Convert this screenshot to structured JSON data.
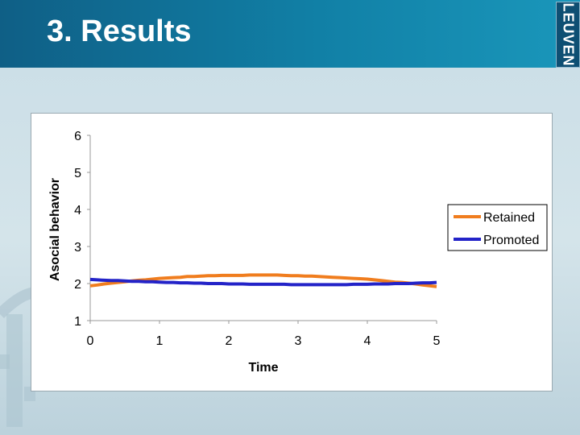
{
  "slide": {
    "title": "3. Results",
    "logo_text": "LEUVEN",
    "colors": {
      "header": "#1180a6",
      "background": "#d4e4ea"
    }
  },
  "chart_data": {
    "type": "line",
    "title": "",
    "xlabel": "Time",
    "ylabel": "Asocial behavior",
    "xlim": [
      0,
      5
    ],
    "ylim": [
      1,
      6
    ],
    "x_ticks": [
      0,
      1,
      2,
      3,
      4,
      5
    ],
    "y_ticks": [
      1,
      2,
      3,
      4,
      5,
      6
    ],
    "grid": false,
    "legend": "right",
    "series": [
      {
        "name": "Retained",
        "color": "#f07d1e",
        "x": [
          0,
          0.1,
          0.2,
          0.3,
          0.4,
          0.5,
          0.6,
          0.7,
          0.8,
          0.9,
          1.0,
          1.1,
          1.2,
          1.3,
          1.4,
          1.5,
          1.6,
          1.7,
          1.8,
          1.9,
          2.0,
          2.1,
          2.2,
          2.3,
          2.4,
          2.5,
          2.6,
          2.7,
          2.8,
          2.9,
          3.0,
          3.1,
          3.2,
          3.3,
          3.4,
          3.5,
          3.6,
          3.7,
          3.8,
          3.9,
          4.0,
          4.1,
          4.2,
          4.3,
          4.4,
          4.5,
          4.6,
          4.7,
          4.8,
          4.9,
          5.0
        ],
        "values": [
          1.94,
          1.96,
          1.99,
          2.01,
          2.03,
          2.05,
          2.07,
          2.09,
          2.1,
          2.12,
          2.14,
          2.15,
          2.16,
          2.17,
          2.19,
          2.19,
          2.2,
          2.21,
          2.21,
          2.22,
          2.22,
          2.22,
          2.22,
          2.23,
          2.23,
          2.23,
          2.23,
          2.23,
          2.22,
          2.21,
          2.21,
          2.2,
          2.2,
          2.19,
          2.18,
          2.17,
          2.16,
          2.15,
          2.14,
          2.13,
          2.12,
          2.1,
          2.08,
          2.06,
          2.04,
          2.03,
          2.01,
          1.99,
          1.96,
          1.94,
          1.92
        ]
      },
      {
        "name": "Promoted",
        "color": "#2323c8",
        "x": [
          0,
          0.1,
          0.2,
          0.3,
          0.4,
          0.5,
          0.6,
          0.7,
          0.8,
          0.9,
          1.0,
          1.1,
          1.2,
          1.3,
          1.4,
          1.5,
          1.6,
          1.7,
          1.8,
          1.9,
          2.0,
          2.1,
          2.2,
          2.3,
          2.4,
          2.5,
          2.6,
          2.7,
          2.8,
          2.9,
          3.0,
          3.1,
          3.2,
          3.3,
          3.4,
          3.5,
          3.6,
          3.7,
          3.8,
          3.9,
          4.0,
          4.1,
          4.2,
          4.3,
          4.4,
          4.5,
          4.6,
          4.7,
          4.8,
          4.9,
          5.0
        ],
        "values": [
          2.11,
          2.1,
          2.09,
          2.08,
          2.08,
          2.07,
          2.06,
          2.06,
          2.05,
          2.05,
          2.04,
          2.03,
          2.03,
          2.02,
          2.02,
          2.01,
          2.01,
          2.0,
          2.0,
          2.0,
          1.99,
          1.99,
          1.99,
          1.98,
          1.98,
          1.98,
          1.98,
          1.98,
          1.98,
          1.97,
          1.97,
          1.97,
          1.97,
          1.97,
          1.97,
          1.97,
          1.97,
          1.97,
          1.98,
          1.98,
          1.98,
          1.99,
          1.99,
          1.99,
          2.0,
          2.0,
          2.0,
          2.01,
          2.02,
          2.02,
          2.03
        ]
      }
    ]
  }
}
